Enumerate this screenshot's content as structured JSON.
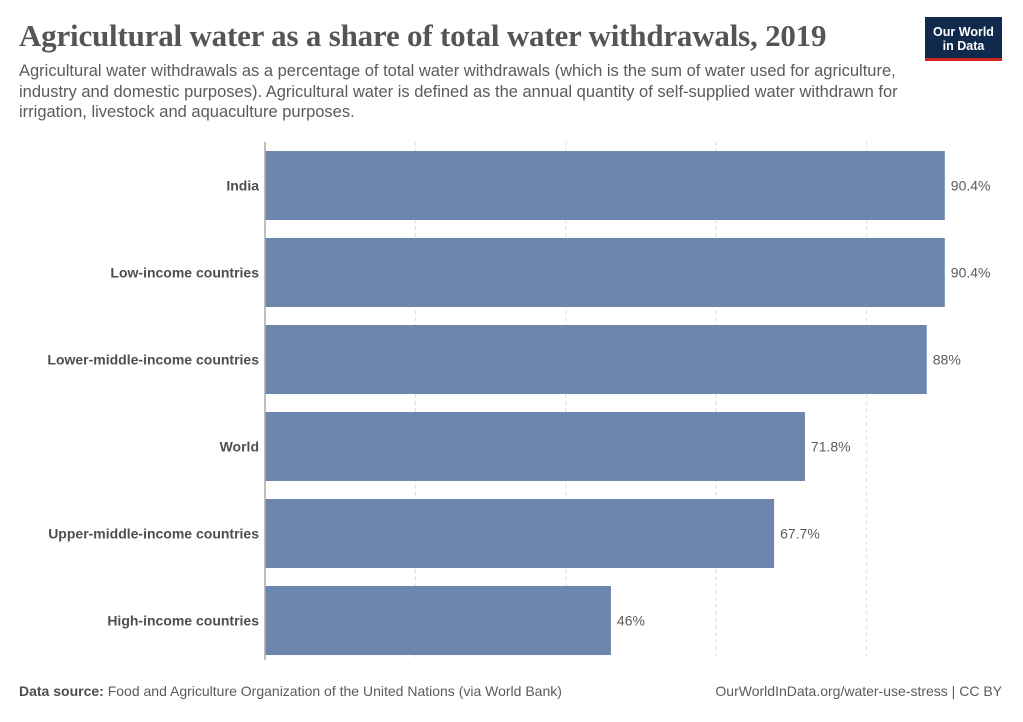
{
  "header": {
    "title": "Agricultural water as a share of total water withdrawals, 2019",
    "subtitle": "Agricultural water withdrawals as a percentage of total water withdrawals (which is the sum of water used for agriculture, industry and domestic purposes). Agricultural water is defined as the annual quantity of self-supplied water withdrawn for irrigation, livestock and aquaculture purposes.",
    "logo_line1": "Our World",
    "logo_line2": "in Data"
  },
  "footer": {
    "source_label": "Data source:",
    "source_text": "Food and Agriculture Organization of the United Nations (via World Bank)",
    "url_license": "OurWorldInData.org/water-use-stress | CC BY"
  },
  "colors": {
    "bar": "#6d86ae",
    "logo_bg": "#0f2a4d",
    "logo_accent": "#ce261e"
  },
  "chart_data": {
    "type": "bar",
    "orientation": "horizontal",
    "title": "Agricultural water as a share of total water withdrawals, 2019",
    "xlabel": "",
    "ylabel": "",
    "categories": [
      "India",
      "Low-income countries",
      "Lower-middle-income countries",
      "World",
      "Upper-middle-income countries",
      "High-income countries"
    ],
    "values": [
      90.4,
      90.4,
      88,
      71.8,
      67.7,
      46
    ],
    "value_labels": [
      "90.4%",
      "90.4%",
      "88%",
      "71.8%",
      "67.7%",
      "46%"
    ],
    "unit": "%",
    "xlim": [
      0,
      100
    ],
    "gridlines": [
      0,
      20,
      40,
      60,
      80
    ],
    "grid": true,
    "legend": "none"
  }
}
